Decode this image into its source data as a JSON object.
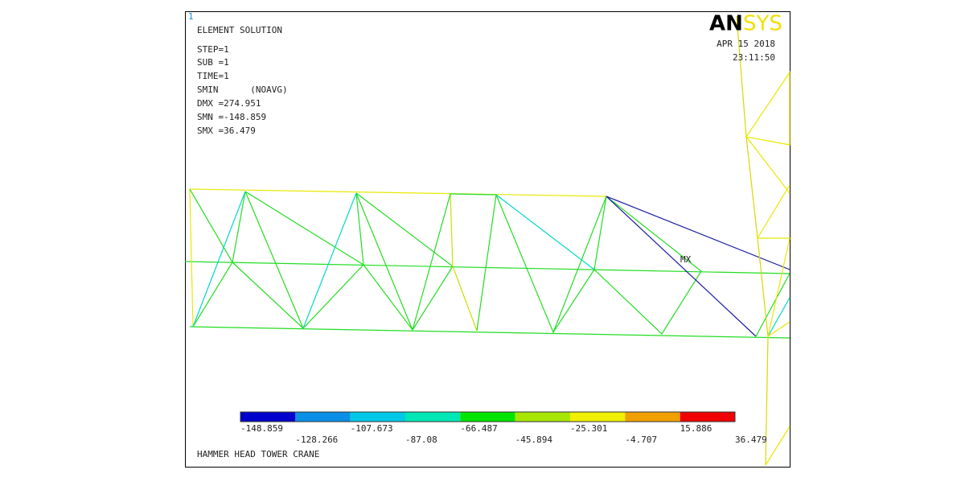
{
  "window_number": "1",
  "logo": {
    "an": "AN",
    "sys": "SYS"
  },
  "info": [
    "ELEMENT SOLUTION",
    "STEP=1",
    "SUB =1",
    "TIME=1",
    "SMIN      (NOAVG)",
    "DMX =274.951",
    "SMN =-148.859",
    "SMX =36.479"
  ],
  "date": "APR 15 2018",
  "time": "23:11:50",
  "node_label": "MX",
  "legend": {
    "labels": [
      "-148.859",
      "-128.266",
      "-107.673",
      "-87.08",
      "-66.487",
      "-45.894",
      "-25.301",
      "-4.707",
      "15.886",
      "36.479"
    ],
    "colors": [
      "#0000cc",
      "#0a8ee6",
      "#00c8e6",
      "#00e6b4",
      "#00e600",
      "#a8e600",
      "#f0f000",
      "#f0a000",
      "#f00000"
    ]
  },
  "caption": "HAMMER HEAD TOWER CRANE"
}
